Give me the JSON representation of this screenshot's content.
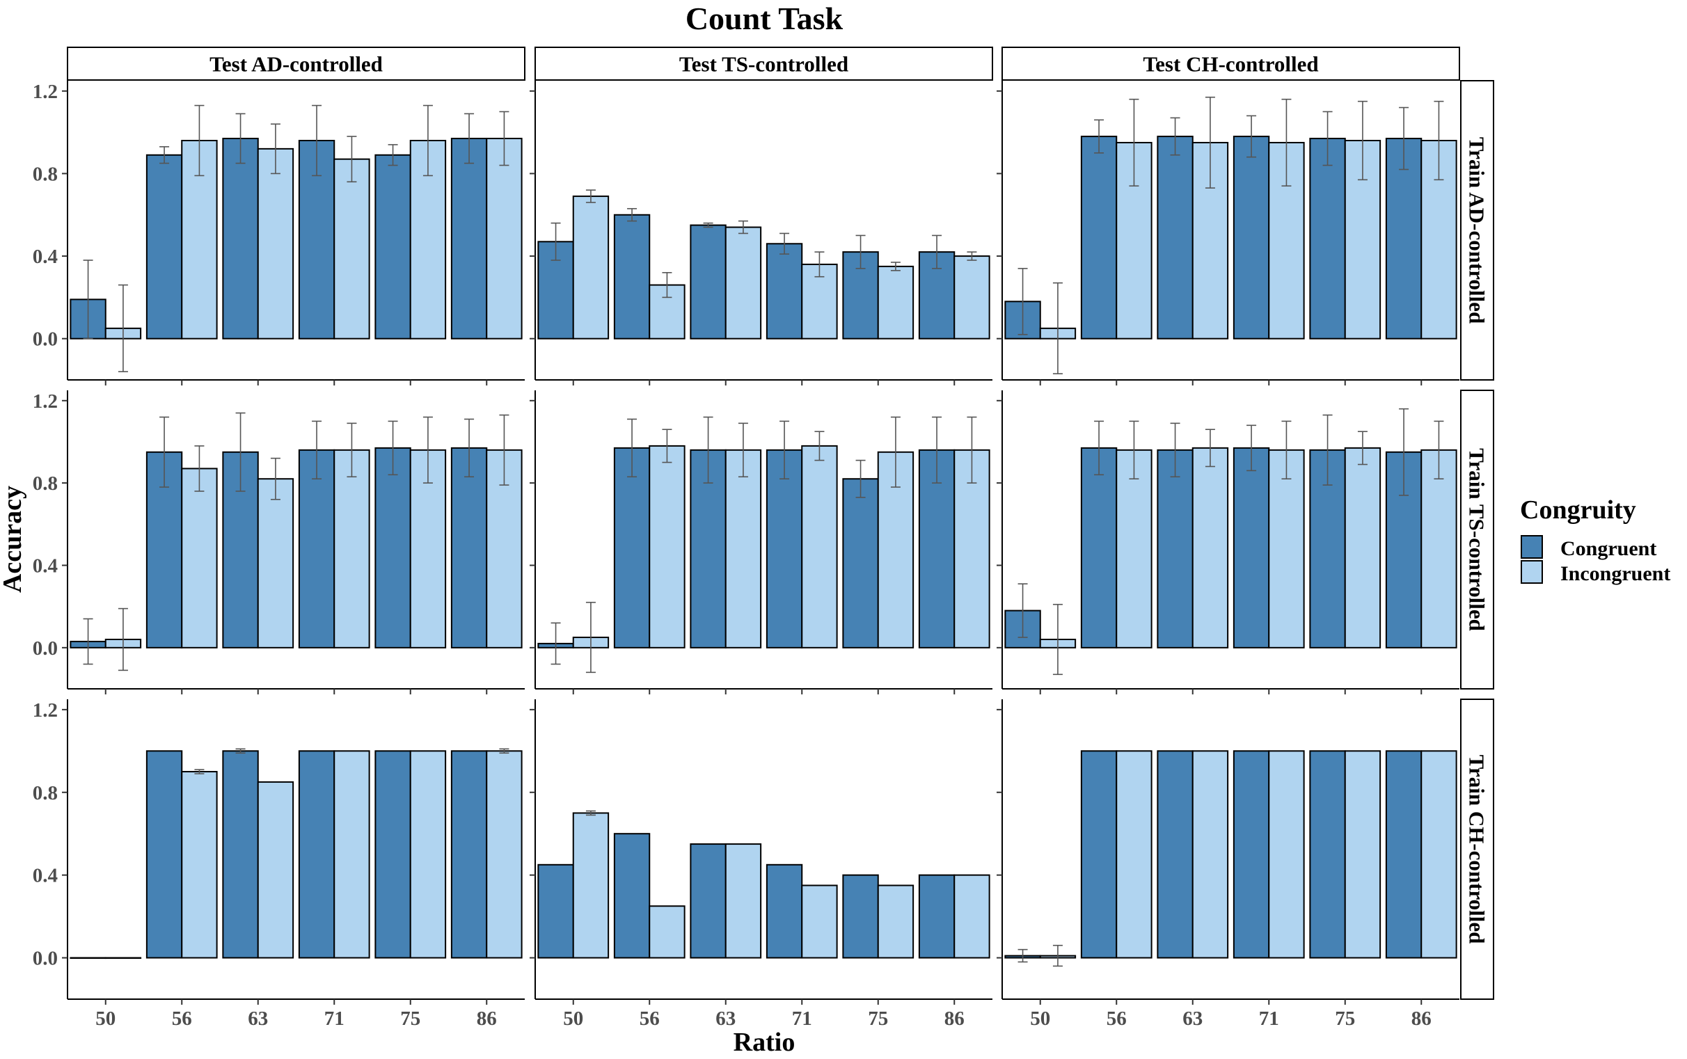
{
  "chart_data": {
    "type": "bar",
    "title": "Count Task",
    "xlabel": "Ratio",
    "ylabel": "Accuracy",
    "ylim": [
      -0.2,
      1.25
    ],
    "yticks": [
      0.0,
      0.4,
      0.8,
      1.2
    ],
    "yticks_labels": [
      "0.0",
      "0.4",
      "0.8",
      "1.2"
    ],
    "categories": [
      "50",
      "56",
      "63",
      "71",
      "75",
      "86"
    ],
    "grid": false,
    "legend": {
      "title": "Congruity",
      "placement": "right",
      "entries": [
        {
          "name": "Congruent",
          "color": "#4682b4"
        },
        {
          "name": "Incongruent",
          "color": "#b0d4f0"
        }
      ]
    },
    "col_facets": [
      "Test AD-controlled",
      "Test TS-controlled",
      "Test CH-controlled"
    ],
    "row_facets": [
      "Train AD-controlled",
      "Train TS-controlled",
      "Train CH-controlled"
    ],
    "series_names": [
      "Congruent",
      "Incongruent"
    ],
    "panels": [
      {
        "row": "Train AD-controlled",
        "col": "Test AD-controlled",
        "congruent": [
          0.19,
          0.89,
          0.97,
          0.96,
          0.89,
          0.97
        ],
        "congruent_err": [
          0.19,
          0.04,
          0.12,
          0.17,
          0.05,
          0.12
        ],
        "incongruent": [
          0.05,
          0.96,
          0.92,
          0.87,
          0.96,
          0.97
        ],
        "incongruent_err": [
          0.21,
          0.17,
          0.12,
          0.11,
          0.17,
          0.13
        ]
      },
      {
        "row": "Train AD-controlled",
        "col": "Test TS-controlled",
        "congruent": [
          0.47,
          0.6,
          0.55,
          0.46,
          0.42,
          0.42
        ],
        "congruent_err": [
          0.09,
          0.03,
          0.01,
          0.05,
          0.08,
          0.08
        ],
        "incongruent": [
          0.69,
          0.26,
          0.54,
          0.36,
          0.35,
          0.4
        ],
        "incongruent_err": [
          0.03,
          0.06,
          0.03,
          0.06,
          0.02,
          0.02
        ]
      },
      {
        "row": "Train AD-controlled",
        "col": "Test CH-controlled",
        "congruent": [
          0.18,
          0.98,
          0.98,
          0.98,
          0.97,
          0.97
        ],
        "congruent_err": [
          0.16,
          0.08,
          0.09,
          0.1,
          0.13,
          0.15
        ],
        "incongruent": [
          0.05,
          0.95,
          0.95,
          0.95,
          0.96,
          0.96
        ],
        "incongruent_err": [
          0.22,
          0.21,
          0.22,
          0.21,
          0.19,
          0.19
        ]
      },
      {
        "row": "Train TS-controlled",
        "col": "Test AD-controlled",
        "congruent": [
          0.03,
          0.95,
          0.95,
          0.96,
          0.97,
          0.97
        ],
        "congruent_err": [
          0.11,
          0.17,
          0.19,
          0.14,
          0.13,
          0.14
        ],
        "incongruent": [
          0.04,
          0.87,
          0.82,
          0.96,
          0.96,
          0.96
        ],
        "incongruent_err": [
          0.15,
          0.11,
          0.1,
          0.13,
          0.16,
          0.17
        ]
      },
      {
        "row": "Train TS-controlled",
        "col": "Test TS-controlled",
        "congruent": [
          0.02,
          0.97,
          0.96,
          0.96,
          0.82,
          0.96
        ],
        "congruent_err": [
          0.1,
          0.14,
          0.16,
          0.14,
          0.09,
          0.16
        ],
        "incongruent": [
          0.05,
          0.98,
          0.96,
          0.98,
          0.95,
          0.96
        ],
        "incongruent_err": [
          0.17,
          0.08,
          0.13,
          0.07,
          0.17,
          0.16
        ]
      },
      {
        "row": "Train TS-controlled",
        "col": "Test CH-controlled",
        "congruent": [
          0.18,
          0.97,
          0.96,
          0.97,
          0.96,
          0.95
        ],
        "congruent_err": [
          0.13,
          0.13,
          0.13,
          0.11,
          0.17,
          0.21
        ],
        "incongruent": [
          0.04,
          0.96,
          0.97,
          0.96,
          0.97,
          0.96
        ],
        "incongruent_err": [
          0.17,
          0.14,
          0.09,
          0.14,
          0.08,
          0.14
        ]
      },
      {
        "row": "Train CH-controlled",
        "col": "Test AD-controlled",
        "congruent": [
          0.0,
          1.0,
          1.0,
          1.0,
          1.0,
          1.0
        ],
        "congruent_err": [
          0.0,
          0.0,
          0.01,
          0.0,
          0.0,
          0.0
        ],
        "incongruent": [
          0.0,
          0.9,
          0.85,
          1.0,
          1.0,
          1.0
        ],
        "incongruent_err": [
          0.0,
          0.01,
          0.0,
          0.0,
          0.0,
          0.01
        ]
      },
      {
        "row": "Train CH-controlled",
        "col": "Test TS-controlled",
        "congruent": [
          0.45,
          0.6,
          0.55,
          0.45,
          0.4,
          0.4
        ],
        "congruent_err": [
          0.0,
          0.0,
          0.0,
          0.0,
          0.0,
          0.0
        ],
        "incongruent": [
          0.7,
          0.25,
          0.55,
          0.35,
          0.35,
          0.4
        ],
        "incongruent_err": [
          0.01,
          0.0,
          0.0,
          0.0,
          0.0,
          0.0
        ]
      },
      {
        "row": "Train CH-controlled",
        "col": "Test CH-controlled",
        "congruent": [
          0.01,
          1.0,
          1.0,
          1.0,
          1.0,
          1.0
        ],
        "congruent_err": [
          0.03,
          0.0,
          0.0,
          0.0,
          0.0,
          0.0
        ],
        "incongruent": [
          0.01,
          1.0,
          1.0,
          1.0,
          1.0,
          1.0
        ],
        "incongruent_err": [
          0.05,
          0.0,
          0.0,
          0.0,
          0.0,
          0.0
        ]
      }
    ]
  }
}
